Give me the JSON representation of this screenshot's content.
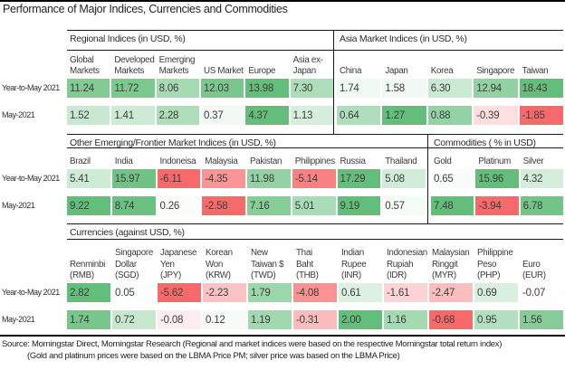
{
  "title": "Performance of Major Indices, Currencies and Commodities",
  "footer": {
    "line1": "Source: Morningstar Direct, Morningstar Research (Regional and market indices were based on the respective Morningstar total return index)",
    "line2": "(Gold and platinum prices were based on the LBMA Price PM; silver price was based on the LBMA Price)"
  },
  "chart_data": {
    "type": "heatmap-table",
    "row_labels": [
      "Year-to-May 2021",
      "May-2021"
    ],
    "color_scale": {
      "max_positive": "#63BE7B",
      "min_negative": "#F8696B",
      "zero": "#FFFFFF",
      "scaling": "per section, per row: white-to-green for positives (value/max), white-to-red for negatives (value/min)"
    },
    "bands": [
      {
        "sections": [
          {
            "header": "Regional Indices (in USD, %)",
            "columns": [
              "Global Markets",
              "Developed Markets",
              "Emerging Markets",
              "US Market",
              "Europe",
              "Asia ex-Japan"
            ],
            "column_lines": [
              [
                "Global",
                "Markets"
              ],
              [
                "Developed",
                "Markets"
              ],
              [
                "Emerging",
                "Markets"
              ],
              [
                "US Market"
              ],
              [
                "Europe"
              ],
              [
                "Asia ex-",
                "Japan"
              ]
            ],
            "rows": [
              [
                11.24,
                11.72,
                8.06,
                12.03,
                13.98,
                7.3
              ],
              [
                1.52,
                1.41,
                2.28,
                0.37,
                4.37,
                1.13
              ]
            ]
          },
          {
            "header": "Asia Market Indices (in USD, %)",
            "columns": [
              "China",
              "Japan",
              "Korea",
              "Singapore",
              "Taiwan"
            ],
            "column_lines": [
              [
                "China"
              ],
              [
                "Japan"
              ],
              [
                "Korea"
              ],
              [
                "Singapore"
              ],
              [
                "Taiwan"
              ]
            ],
            "rows": [
              [
                1.74,
                1.58,
                6.3,
                12.94,
                18.43
              ],
              [
                0.64,
                1.27,
                0.88,
                -0.39,
                -1.85
              ]
            ]
          }
        ]
      },
      {
        "sections": [
          {
            "header": "Other Emerging/Frontier Market Indices (in USD, %)",
            "columns": [
              "Brazil",
              "India",
              "Indoneisa",
              "Malaysia",
              "Pakistan",
              "Philippines",
              "Russia",
              "Thailand"
            ],
            "column_lines": [
              [
                "Brazil"
              ],
              [
                "India"
              ],
              [
                "Indoneisa"
              ],
              [
                "Malaysia"
              ],
              [
                "Pakistan"
              ],
              [
                "Philippines"
              ],
              [
                "Russia"
              ],
              [
                "Thailand"
              ]
            ],
            "rows": [
              [
                5.41,
                15.97,
                -6.11,
                -4.35,
                11.98,
                -5.14,
                17.29,
                5.08
              ],
              [
                9.22,
                8.74,
                0.26,
                -2.58,
                7.16,
                5.01,
                9.19,
                0.57
              ]
            ]
          },
          {
            "header": "Commodities ( % in USD)",
            "columns": [
              "Gold",
              "Platinum",
              "Silver"
            ],
            "column_lines": [
              [
                "Gold"
              ],
              [
                "Platinum"
              ],
              [
                "Silver"
              ]
            ],
            "rows": [
              [
                0.65,
                15.96,
                4.32
              ],
              [
                7.48,
                -3.94,
                6.78
              ]
            ]
          }
        ]
      },
      {
        "sections": [
          {
            "header": "Currencies (against USD, %)",
            "columns": [
              "Renminbi (RMB)",
              "Singapore Dollar (SGD)",
              "Japanese Yen (JPY)",
              "Korean Won (KRW)",
              "New Taiwan $ (TWD)",
              "Thai Baht (THB)",
              "Indian Rupee (INR)",
              "Indonesian Rupiah (IDR)",
              "Malaysian Ringgit (MYR)",
              "Philippine Peso (PHP)",
              "Euro (EUR)"
            ],
            "column_lines": [
              [
                "Renminbi",
                "(RMB)"
              ],
              [
                "Singapore",
                "Dollar",
                "(SGD)"
              ],
              [
                "Japanese",
                "Yen",
                "(JPY)"
              ],
              [
                "Korean",
                "Won",
                "(KRW)"
              ],
              [
                "New",
                "Taiwan $",
                "(TWD)"
              ],
              [
                "Thai",
                "Baht",
                "(THB)"
              ],
              [
                "Indian",
                "Rupee",
                "(INR)"
              ],
              [
                "Indonesian",
                "Rupiah",
                "(IDR)"
              ],
              [
                "Malaysian",
                "Ringgit",
                "(MYR)"
              ],
              [
                "Philippine",
                "Peso",
                "(PHP)"
              ],
              [
                "Euro",
                "(EUR)"
              ]
            ],
            "rows": [
              [
                2.82,
                0.05,
                -5.62,
                -2.23,
                1.79,
                -4.08,
                0.61,
                -1.61,
                -2.47,
                0.69,
                -0.07
              ],
              [
                1.74,
                0.72,
                -0.08,
                0.12,
                1.19,
                -0.31,
                2.0,
                1.16,
                -0.68,
                0.95,
                1.56
              ]
            ]
          }
        ]
      }
    ]
  }
}
